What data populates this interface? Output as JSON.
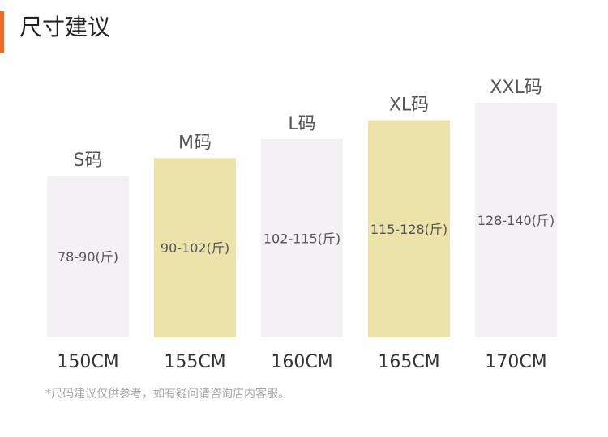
{
  "header": {
    "title": "尺寸建议"
  },
  "footnote": "*尺码建议仅供参考，如有疑问请咨询店内客服。",
  "colors": {
    "accent": "#f26a21",
    "bar_neutral": "#f3f1f4",
    "bar_highlight": "#ece3ab",
    "text_dark": "#333333",
    "text_mid": "#555555",
    "text_light": "#a6a6a6"
  },
  "chart_data": {
    "type": "bar",
    "categories": [
      "150CM",
      "155CM",
      "160CM",
      "165CM",
      "170CM"
    ],
    "size_labels": [
      "S码",
      "M码",
      "L码",
      "XL码",
      "XXL码"
    ],
    "weight_labels": [
      "78-90(斤)",
      "90-102(斤)",
      "102-115(斤)",
      "115-128(斤)",
      "128-140(斤)"
    ],
    "values": [
      90,
      102,
      115,
      128,
      140
    ],
    "highlighted": [
      false,
      true,
      false,
      true,
      false
    ],
    "title": "",
    "xlabel": "",
    "ylabel": "",
    "ylim": [
      0,
      140
    ]
  }
}
